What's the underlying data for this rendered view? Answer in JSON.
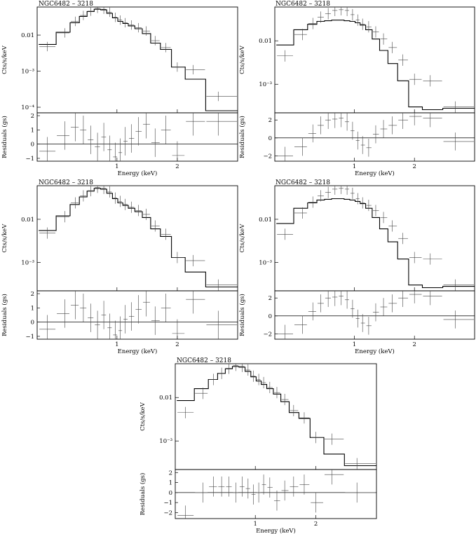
{
  "figure": {
    "panels": [
      {
        "id": "p1",
        "title": "NGC6482 – 3218",
        "fit": "good",
        "spec_ticks": [
          "0.01",
          "10⁻³",
          "10⁻⁴"
        ],
        "res_ticks": [
          "2",
          "1",
          "0",
          "−1"
        ]
      },
      {
        "id": "p2",
        "title": "NGC6482 – 3218",
        "fit": "poor",
        "spec_ticks": [
          "0.01",
          "10⁻³"
        ],
        "res_ticks": [
          "2",
          "0",
          "−2"
        ]
      },
      {
        "id": "p3",
        "title": "NGC6482 – 3218",
        "fit": "good",
        "spec_ticks": [
          "0.01",
          "10⁻³"
        ],
        "res_ticks": [
          "2",
          "1",
          "0",
          "−1"
        ]
      },
      {
        "id": "p4",
        "title": "NGC6482 – 3218",
        "fit": "poor",
        "spec_ticks": [
          "0.01",
          "10⁻³"
        ],
        "res_ticks": [
          "2",
          "0",
          "−2"
        ]
      },
      {
        "id": "p5",
        "title": "NGC6482 – 3218",
        "fit": "good",
        "spec_ticks": [
          "0.01",
          "10⁻³"
        ],
        "res_ticks": [
          "2",
          "1",
          "0",
          "−1",
          "−2"
        ]
      }
    ]
  },
  "chart_data": [
    {
      "type": "line",
      "title": "NGC6482 – 3218",
      "xlabel": "Energy (keV)",
      "ylabel_top": "Cts/s/keV",
      "ylabel_bottom": "Residuals (gs)",
      "xlim": [
        0.4,
        4.0
      ],
      "xscale": "log",
      "yscale_top": "log",
      "ylim_top": [
        7e-05,
        0.06
      ],
      "ylim_bottom": [
        -1.2,
        2.2
      ],
      "x_ticks": [
        "1",
        "2"
      ],
      "x": [
        0.45,
        0.55,
        0.62,
        0.68,
        0.74,
        0.8,
        0.86,
        0.92,
        0.98,
        1.04,
        1.1,
        1.18,
        1.28,
        1.4,
        1.55,
        1.75,
        2.0,
        2.4,
        3.2
      ],
      "model": [
        0.0055,
        0.012,
        0.022,
        0.033,
        0.045,
        0.052,
        0.05,
        0.04,
        0.03,
        0.024,
        0.021,
        0.018,
        0.015,
        0.011,
        0.006,
        0.004,
        0.0013,
        0.0006,
        8e-05
      ],
      "data": [
        0.0048,
        0.0115,
        0.024,
        0.035,
        0.046,
        0.055,
        0.052,
        0.043,
        0.031,
        0.026,
        0.022,
        0.019,
        0.016,
        0.013,
        0.007,
        0.0045,
        0.0013,
        0.0011,
        0.0002
      ],
      "residuals": [
        -0.5,
        0.6,
        1.2,
        1.0,
        0.3,
        -0.2,
        0.5,
        -0.4,
        -0.9,
        -0.6,
        0.2,
        0.4,
        0.9,
        1.4,
        0.1,
        1.0,
        -0.8,
        1.6,
        1.6
      ]
    },
    {
      "type": "line",
      "title": "NGC6482 – 3218",
      "xlabel": "Energy (keV)",
      "ylabel_top": "Cts/s/keV",
      "ylabel_bottom": "Residuals (gs)",
      "xlim": [
        0.4,
        4.0
      ],
      "xscale": "log",
      "yscale_top": "log",
      "ylim_top": [
        0.00022,
        0.06
      ],
      "ylim_bottom": [
        -2.6,
        2.8
      ],
      "x_ticks": [
        "1",
        "2"
      ],
      "x": [
        0.45,
        0.55,
        0.62,
        0.68,
        0.74,
        0.8,
        0.86,
        0.92,
        0.98,
        1.04,
        1.1,
        1.18,
        1.28,
        1.4,
        1.55,
        1.75,
        2.0,
        2.4,
        3.2
      ],
      "model": [
        0.008,
        0.018,
        0.024,
        0.028,
        0.029,
        0.03,
        0.03,
        0.029,
        0.028,
        0.026,
        0.023,
        0.018,
        0.011,
        0.006,
        0.003,
        0.0012,
        0.0003,
        0.00026,
        0.00028
      ],
      "data": [
        0.0045,
        0.014,
        0.025,
        0.035,
        0.042,
        0.05,
        0.052,
        0.05,
        0.04,
        0.03,
        0.024,
        0.021,
        0.016,
        0.011,
        0.007,
        0.0036,
        0.0013,
        0.0012,
        0.0003
      ],
      "residuals": [
        -2.0,
        -1.0,
        0.5,
        1.4,
        2.0,
        2.1,
        2.2,
        1.8,
        0.8,
        -0.3,
        -0.8,
        -1.1,
        0.4,
        1.0,
        1.4,
        2.0,
        2.4,
        2.2,
        -0.4
      ]
    },
    {
      "type": "line",
      "title": "NGC6482 – 3218",
      "xlabel": "Energy (keV)",
      "ylabel_top": "Cts/s/keV",
      "ylabel_bottom": "Residuals (gs)",
      "xlim": [
        0.4,
        4.0
      ],
      "xscale": "log",
      "yscale_top": "log",
      "ylim_top": [
        0.00022,
        0.06
      ],
      "ylim_bottom": [
        -1.2,
        2.2
      ],
      "x_ticks": [
        "1",
        "2"
      ],
      "x": [
        0.45,
        0.55,
        0.62,
        0.68,
        0.74,
        0.8,
        0.86,
        0.92,
        0.98,
        1.04,
        1.1,
        1.18,
        1.28,
        1.4,
        1.55,
        1.75,
        2.0,
        2.4,
        3.2
      ],
      "model": [
        0.0055,
        0.012,
        0.022,
        0.033,
        0.045,
        0.052,
        0.05,
        0.04,
        0.03,
        0.024,
        0.021,
        0.018,
        0.015,
        0.011,
        0.006,
        0.004,
        0.0013,
        0.0006,
        0.00027
      ],
      "data": [
        0.0048,
        0.0115,
        0.024,
        0.035,
        0.046,
        0.055,
        0.052,
        0.043,
        0.031,
        0.026,
        0.022,
        0.019,
        0.016,
        0.013,
        0.007,
        0.0045,
        0.0013,
        0.0011,
        0.0003
      ],
      "residuals": [
        -0.5,
        0.6,
        1.2,
        1.0,
        0.3,
        -0.2,
        0.5,
        -0.4,
        -0.9,
        -0.6,
        0.2,
        0.4,
        0.9,
        1.4,
        0.1,
        1.0,
        -0.8,
        1.6,
        -0.2
      ]
    },
    {
      "type": "line",
      "title": "NGC6482 – 3218",
      "xlabel": "Energy (keV)",
      "ylabel_top": "Cts/s/keV",
      "ylabel_bottom": "Residuals (gs)",
      "xlim": [
        0.4,
        4.0
      ],
      "xscale": "log",
      "yscale_top": "log",
      "ylim_top": [
        0.00022,
        0.06
      ],
      "ylim_bottom": [
        -2.6,
        2.8
      ],
      "x_ticks": [
        "1",
        "2"
      ],
      "x": [
        0.45,
        0.55,
        0.62,
        0.68,
        0.74,
        0.8,
        0.86,
        0.92,
        0.98,
        1.04,
        1.1,
        1.18,
        1.28,
        1.4,
        1.55,
        1.75,
        2.0,
        2.4,
        3.2
      ],
      "model": [
        0.008,
        0.018,
        0.024,
        0.028,
        0.029,
        0.03,
        0.03,
        0.029,
        0.028,
        0.026,
        0.023,
        0.018,
        0.011,
        0.006,
        0.003,
        0.0012,
        0.0003,
        0.00026,
        0.00028
      ],
      "data": [
        0.0045,
        0.014,
        0.025,
        0.035,
        0.042,
        0.05,
        0.052,
        0.05,
        0.04,
        0.03,
        0.024,
        0.021,
        0.016,
        0.011,
        0.007,
        0.0036,
        0.0013,
        0.0012,
        0.0003
      ],
      "residuals": [
        -2.0,
        -1.0,
        0.5,
        1.4,
        2.0,
        2.1,
        2.2,
        1.8,
        0.8,
        -0.3,
        -0.8,
        -1.1,
        0.4,
        1.0,
        1.4,
        2.0,
        2.4,
        2.2,
        -0.4
      ]
    },
    {
      "type": "line",
      "title": "NGC6482 – 3218",
      "xlabel": "Energy (keV)",
      "ylabel_top": "Cts/s/keV",
      "ylabel_bottom": "Residuals (gs)",
      "xlim": [
        0.4,
        4.0
      ],
      "xscale": "log",
      "yscale_top": "log",
      "ylim_top": [
        0.00022,
        0.06
      ],
      "ylim_bottom": [
        -2.6,
        2.3
      ],
      "x_ticks": [
        "1",
        "2"
      ],
      "x": [
        0.45,
        0.55,
        0.62,
        0.68,
        0.74,
        0.8,
        0.86,
        0.92,
        0.98,
        1.04,
        1.1,
        1.18,
        1.28,
        1.4,
        1.55,
        1.75,
        2.0,
        2.4,
        3.2
      ],
      "model": [
        0.0085,
        0.016,
        0.026,
        0.036,
        0.046,
        0.052,
        0.05,
        0.04,
        0.03,
        0.024,
        0.02,
        0.016,
        0.012,
        0.008,
        0.0045,
        0.0033,
        0.0012,
        0.0005,
        0.00027
      ],
      "data": [
        0.0045,
        0.0125,
        0.026,
        0.036,
        0.047,
        0.055,
        0.052,
        0.043,
        0.031,
        0.026,
        0.022,
        0.017,
        0.013,
        0.009,
        0.005,
        0.0034,
        0.0012,
        0.0011,
        0.0003
      ],
      "residuals": [
        -2.3,
        0.0,
        0.6,
        0.6,
        0.6,
        0.0,
        0.6,
        0.4,
        -0.2,
        0.0,
        0.8,
        0.5,
        -0.8,
        0.2,
        0.6,
        0.8,
        -1.0,
        1.8,
        0.0
      ]
    }
  ]
}
